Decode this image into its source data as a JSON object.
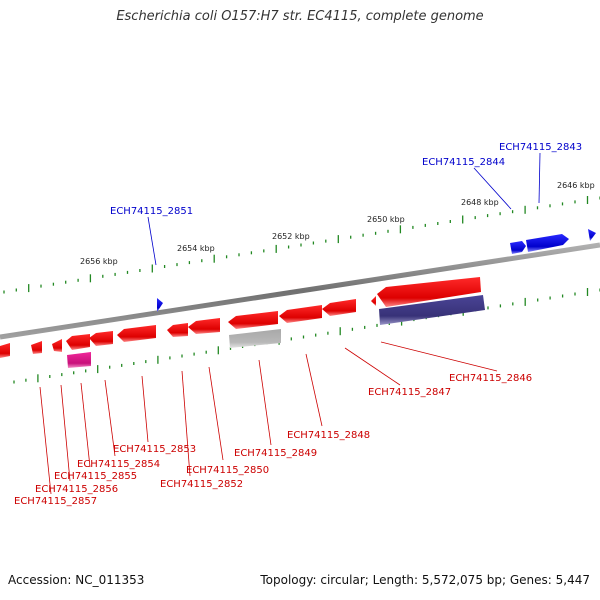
{
  "title": "Escherichia coli O157:H7 str. EC4115, complete genome",
  "footer": {
    "accession": "Accession: NC_011353",
    "info": "Topology: circular; Length: 5,572,075 bp; Genes: 5,447"
  },
  "scale_labels": [
    "2656 kbp",
    "2654 kbp",
    "2652 kbp",
    "2650 kbp",
    "2648 kbp",
    "2646 kbp"
  ],
  "gene_labels_forward": [
    "ECH74115_2851",
    "ECH74115_2844",
    "ECH74115_2843"
  ],
  "gene_labels_reverse": [
    "ECH74115_2846",
    "ECH74115_2847",
    "ECH74115_2848",
    "ECH74115_2849",
    "ECH74115_2850",
    "ECH74115_2852",
    "ECH74115_2853",
    "ECH74115_2854",
    "ECH74115_2855",
    "ECH74115_2856",
    "ECH74115_2857"
  ],
  "colors": {
    "reverse_gene": "#ee1111",
    "forward_gene": "#0000ee",
    "rna_gene": "#e8168a",
    "pseudo_gene": "#b0b0b0",
    "other_gene": "#403c88",
    "backbone": "#808080",
    "tick": "#228822"
  }
}
